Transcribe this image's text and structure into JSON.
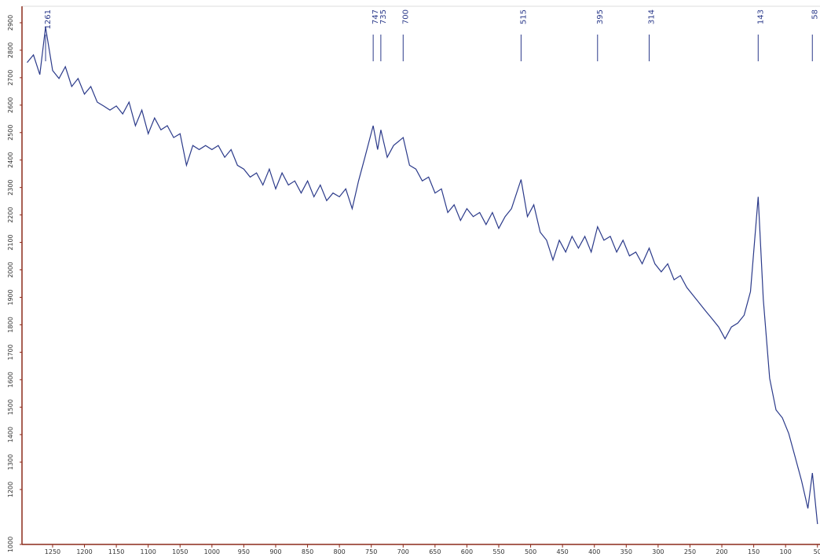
{
  "chart_data": {
    "type": "line",
    "x": [
      1290,
      1280,
      1270,
      1261,
      1250,
      1240,
      1230,
      1220,
      1210,
      1200,
      1190,
      1180,
      1170,
      1160,
      1150,
      1140,
      1130,
      1120,
      1110,
      1100,
      1090,
      1080,
      1070,
      1060,
      1050,
      1040,
      1030,
      1020,
      1010,
      1000,
      990,
      980,
      970,
      960,
      950,
      940,
      930,
      920,
      910,
      900,
      890,
      880,
      870,
      860,
      850,
      840,
      830,
      820,
      810,
      800,
      790,
      780,
      770,
      760,
      747,
      740,
      735,
      725,
      715,
      700,
      690,
      680,
      670,
      660,
      650,
      640,
      630,
      620,
      610,
      600,
      590,
      580,
      570,
      560,
      550,
      540,
      530,
      515,
      505,
      495,
      485,
      475,
      465,
      455,
      445,
      435,
      425,
      415,
      405,
      395,
      385,
      375,
      365,
      355,
      345,
      335,
      325,
      314,
      305,
      295,
      285,
      275,
      265,
      255,
      245,
      235,
      225,
      215,
      205,
      195,
      185,
      175,
      165,
      155,
      143,
      135,
      125,
      115,
      105,
      95,
      85,
      75,
      65,
      58,
      50
    ],
    "series": [
      {
        "color": "#2b3a8a",
        "values": [
          2755,
          2783,
          2711,
          2884,
          2726,
          2697,
          2740,
          2668,
          2697,
          2640,
          2668,
          2611,
          2597,
          2582,
          2597,
          2568,
          2611,
          2525,
          2582,
          2496,
          2553,
          2510,
          2525,
          2482,
          2496,
          2381,
          2453,
          2438,
          2453,
          2438,
          2453,
          2410,
          2438,
          2381,
          2367,
          2338,
          2353,
          2309,
          2367,
          2295,
          2353,
          2309,
          2324,
          2280,
          2324,
          2266,
          2309,
          2252,
          2280,
          2266,
          2295,
          2223,
          2324,
          2410,
          2525,
          2438,
          2510,
          2410,
          2453,
          2482,
          2381,
          2367,
          2324,
          2338,
          2280,
          2295,
          2209,
          2237,
          2180,
          2223,
          2194,
          2209,
          2165,
          2209,
          2151,
          2194,
          2223,
          2329,
          2194,
          2237,
          2137,
          2108,
          2036,
          2108,
          2065,
          2122,
          2079,
          2122,
          2065,
          2157,
          2108,
          2122,
          2065,
          2108,
          2051,
          2065,
          2022,
          2079,
          2022,
          1993,
          2022,
          1964,
          1979,
          1936,
          1907,
          1878,
          1849,
          1821,
          1792,
          1749,
          1792,
          1806,
          1835,
          1921,
          2266,
          1893,
          1605,
          1490,
          1461,
          1404,
          1318,
          1232,
          1131,
          1260,
          1074
        ]
      }
    ],
    "peaks": [
      1261,
      747,
      735,
      700,
      515,
      395,
      314,
      143,
      58
    ],
    "xlim": [
      1298,
      46
    ],
    "xticks": [
      1250,
      1200,
      1150,
      1100,
      1050,
      1000,
      950,
      900,
      850,
      800,
      750,
      700,
      650,
      600,
      550,
      500,
      450,
      400,
      350,
      300,
      250,
      200,
      150,
      100,
      50
    ],
    "ylim": [
      1000,
      2960
    ],
    "yticks": [
      1000,
      1200,
      1300,
      1400,
      1500,
      1600,
      1700,
      1800,
      1900,
      2000,
      2100,
      2200,
      2300,
      2400,
      2500,
      2600,
      2700,
      2800,
      2900
    ]
  }
}
